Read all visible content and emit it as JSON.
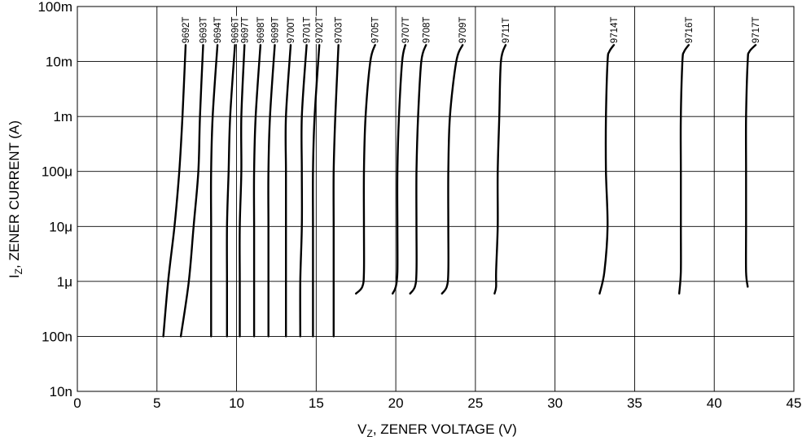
{
  "chart_data": {
    "type": "line",
    "title": "",
    "xlabel": {
      "main": "V",
      "sub": "Z",
      "rest": ", ZENER VOLTAGE (V)"
    },
    "ylabel": {
      "main": "I",
      "sub": "Z",
      "rest": ", ZENER CURRENT (A)"
    },
    "xlim": [
      0,
      45
    ],
    "ylim": [
      1e-08,
      0.1
    ],
    "yscale": "log",
    "grid": true,
    "legend": "none",
    "x_ticks": [
      0,
      5,
      10,
      15,
      20,
      25,
      30,
      35,
      40,
      45
    ],
    "x_tick_labels": [
      "0",
      "5",
      "10",
      "15",
      "20",
      "25",
      "30",
      "35",
      "40",
      "45"
    ],
    "y_ticks": [
      1e-08,
      1e-07,
      1e-06,
      1e-05,
      0.0001,
      0.001,
      0.01,
      0.1
    ],
    "y_tick_labels": [
      "10n",
      "100n",
      "1μ",
      "10μ",
      "100μ",
      "1m",
      "10m",
      "100m"
    ],
    "series": [
      {
        "name": "9692T",
        "x": [
          5.4,
          5.7,
          6.1,
          6.4,
          6.6,
          6.8
        ],
        "y": [
          1e-07,
          1e-06,
          1e-05,
          0.0001,
          0.001,
          0.02
        ]
      },
      {
        "name": "9693T",
        "x": [
          6.5,
          7.0,
          7.3,
          7.6,
          7.7,
          7.9
        ],
        "y": [
          1e-07,
          1e-06,
          1e-05,
          0.0001,
          0.001,
          0.02
        ]
      },
      {
        "name": "9694T",
        "x": [
          8.4,
          8.4,
          8.4,
          8.4,
          8.5,
          8.8
        ],
        "y": [
          1e-07,
          1e-06,
          1e-05,
          0.0001,
          0.001,
          0.02
        ]
      },
      {
        "name": "9696T",
        "x": [
          9.4,
          9.4,
          9.4,
          9.5,
          9.6,
          9.9
        ],
        "y": [
          1e-07,
          1e-06,
          1e-05,
          0.0001,
          0.001,
          0.02
        ]
      },
      {
        "name": "9697T",
        "x": [
          10.2,
          10.2,
          10.2,
          10.3,
          10.3,
          10.5
        ],
        "y": [
          1e-07,
          1e-06,
          1e-05,
          0.0001,
          0.001,
          0.02
        ]
      },
      {
        "name": "9698T",
        "x": [
          11.1,
          11.1,
          11.1,
          11.1,
          11.2,
          11.5
        ],
        "y": [
          1e-07,
          1e-06,
          1e-05,
          0.0001,
          0.001,
          0.02
        ]
      },
      {
        "name": "9699T",
        "x": [
          12.0,
          12.0,
          12.0,
          12.0,
          12.1,
          12.4
        ],
        "y": [
          1e-07,
          1e-06,
          1e-05,
          0.0001,
          0.001,
          0.02
        ]
      },
      {
        "name": "9700T",
        "x": [
          13.1,
          13.1,
          13.1,
          13.1,
          13.1,
          13.4
        ],
        "y": [
          1e-07,
          1e-06,
          1e-05,
          0.0001,
          0.001,
          0.02
        ]
      },
      {
        "name": "9701T",
        "x": [
          14.0,
          14.0,
          14.1,
          14.1,
          14.1,
          14.4
        ],
        "y": [
          1e-07,
          1e-06,
          1e-05,
          0.0001,
          0.001,
          0.02
        ]
      },
      {
        "name": "9702T",
        "x": [
          14.8,
          14.8,
          14.8,
          14.8,
          14.9,
          15.2
        ],
        "y": [
          1e-07,
          1e-06,
          1e-05,
          0.0001,
          0.001,
          0.02
        ]
      },
      {
        "name": "9703T",
        "x": [
          16.1,
          16.1,
          16.1,
          16.1,
          16.2,
          16.4
        ],
        "y": [
          1e-07,
          1e-06,
          1e-05,
          0.0001,
          0.001,
          0.02
        ]
      },
      {
        "name": "9705T",
        "x": [
          17.5,
          17.9,
          18.0,
          18.0,
          18.0,
          18.1,
          18.4,
          18.7
        ],
        "y": [
          6e-07,
          8e-07,
          1.5e-06,
          1e-05,
          0.0001,
          0.001,
          0.01,
          0.02
        ]
      },
      {
        "name": "9707T",
        "x": [
          19.8,
          20.0,
          20.1,
          20.1,
          20.1,
          20.2,
          20.4,
          20.6
        ],
        "y": [
          6e-07,
          8e-07,
          1.5e-06,
          1e-05,
          0.0001,
          0.001,
          0.01,
          0.02
        ]
      },
      {
        "name": "9708T",
        "x": [
          20.9,
          21.2,
          21.3,
          21.3,
          21.3,
          21.4,
          21.6,
          21.9
        ],
        "y": [
          6e-07,
          8e-07,
          1.5e-06,
          1e-05,
          0.0001,
          0.001,
          0.01,
          0.02
        ]
      },
      {
        "name": "9709T",
        "x": [
          22.9,
          23.2,
          23.3,
          23.3,
          23.3,
          23.4,
          23.8,
          24.2
        ],
        "y": [
          6e-07,
          8e-07,
          1.5e-06,
          1e-05,
          0.0001,
          0.001,
          0.01,
          0.02
        ]
      },
      {
        "name": "9711T",
        "x": [
          26.2,
          26.3,
          26.3,
          26.4,
          26.4,
          26.5,
          26.6,
          26.9
        ],
        "y": [
          6e-07,
          8e-07,
          1.5e-06,
          1e-05,
          0.0001,
          0.001,
          0.01,
          0.02
        ]
      },
      {
        "name": "9714T",
        "x": [
          32.8,
          33.1,
          33.3,
          33.2,
          33.2,
          33.3,
          33.4,
          33.7
        ],
        "y": [
          6e-07,
          1.5e-06,
          1e-05,
          0.0001,
          0.001,
          0.01,
          0.015,
          0.02
        ]
      },
      {
        "name": "9716T",
        "x": [
          37.8,
          37.9,
          37.9,
          37.9,
          37.9,
          38.0,
          38.1,
          38.4
        ],
        "y": [
          6e-07,
          1.5e-06,
          1e-05,
          0.0001,
          0.001,
          0.01,
          0.015,
          0.02
        ]
      },
      {
        "name": "9717T",
        "x": [
          42.1,
          42.0,
          42.0,
          42.0,
          42.0,
          42.1,
          42.2,
          42.6
        ],
        "y": [
          8e-07,
          1.5e-06,
          1e-05,
          0.0001,
          0.001,
          0.01,
          0.015,
          0.02
        ]
      }
    ]
  }
}
